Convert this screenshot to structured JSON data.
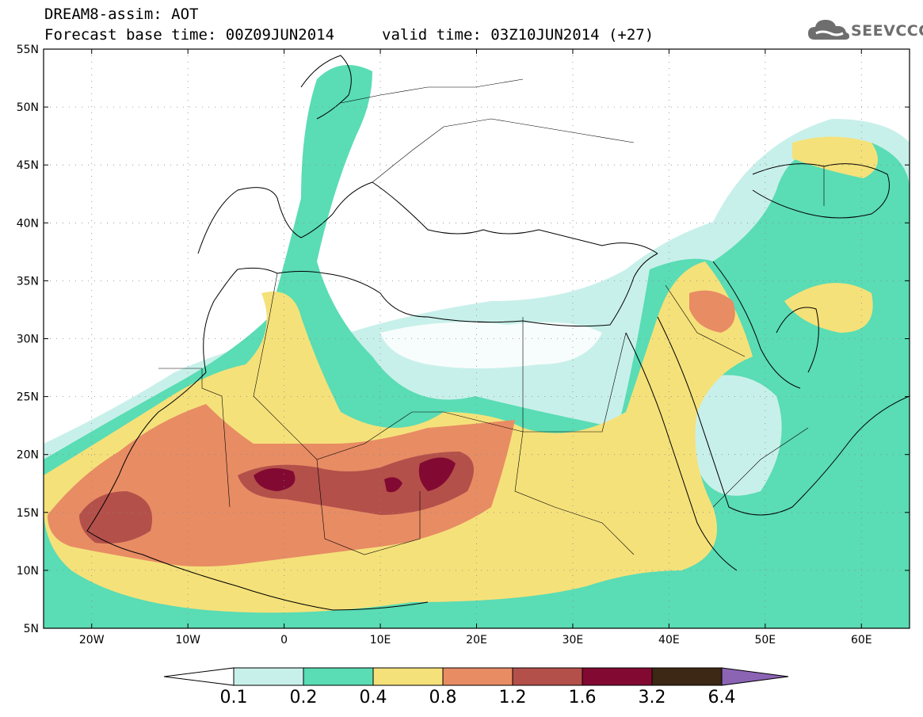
{
  "header": {
    "title": "DREAM8-assim: AOT",
    "base_time": "Forecast base time: 00Z09JUN2014",
    "valid_time": "valid time: 03Z10JUN2014 (+27)"
  },
  "logo": {
    "text": "SEEVCCC",
    "icon": "cloud-icon"
  },
  "map": {
    "lon_range": [
      -25,
      65
    ],
    "lat_range": [
      5,
      55
    ],
    "lat_ticks": [
      "5N",
      "10N",
      "15N",
      "20N",
      "25N",
      "30N",
      "35N",
      "40N",
      "45N",
      "50N",
      "55N"
    ],
    "lon_ticks": [
      "20W",
      "10W",
      "0",
      "10E",
      "20E",
      "30E",
      "40E",
      "50E",
      "60E"
    ]
  },
  "legend": {
    "labels": [
      "0.1",
      "0.2",
      "0.4",
      "0.8",
      "1.2",
      "1.6",
      "3.2",
      "6.4"
    ],
    "colors": [
      "#ffffff",
      "#c8f0ea",
      "#5adcb4",
      "#f5e17a",
      "#e88c64",
      "#b4504a",
      "#820a32",
      "#3c2814",
      "#8c64b4"
    ]
  }
}
